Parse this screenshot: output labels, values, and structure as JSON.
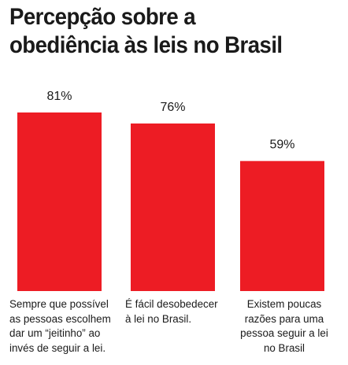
{
  "chart_data": {
    "type": "bar",
    "title_lines": [
      "Percepção sobre a",
      "obediência às leis no Brasil"
    ],
    "categories": [
      [
        "Sempre que possível",
        "as pessoas escolhem",
        "dar um “jeitinho” ao",
        "invés de seguir a lei."
      ],
      [
        "É fácil desobedecer",
        "à lei no Brasil."
      ],
      [
        "Existem poucas",
        "razões para uma",
        "pessoa seguir a lei",
        "no Brasil"
      ]
    ],
    "values": [
      81,
      76,
      59
    ],
    "value_labels": [
      "81%",
      "76%",
      "59%"
    ],
    "xlabel": "",
    "ylabel": "",
    "ylim": [
      0,
      81
    ],
    "grid": false,
    "bar_color": "#ed1c24"
  }
}
